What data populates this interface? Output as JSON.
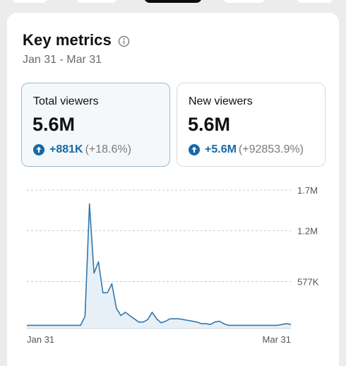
{
  "header": {
    "title": "Key metrics",
    "date_range": "Jan 31 - Mar 31"
  },
  "metrics": [
    {
      "label": "Total viewers",
      "value": "5.6M",
      "delta_abs": "+881K",
      "delta_pct": "(+18.6%)",
      "selected": true
    },
    {
      "label": "New viewers",
      "value": "5.6M",
      "delta_abs": "+5.6M",
      "delta_pct": "(+92853.9%)",
      "selected": false
    }
  ],
  "colors": {
    "accent": "#1769a8",
    "line": "#2f78b1",
    "area": "#e8f0f7"
  },
  "chart_data": {
    "type": "area",
    "xlim": [
      0,
      59
    ],
    "ylim": [
      0,
      1700000
    ],
    "yticks": [
      {
        "value": 1700000,
        "label": "1.7M"
      },
      {
        "value": 1200000,
        "label": "1.2M"
      },
      {
        "value": 577000,
        "label": "577K"
      }
    ],
    "xtick_labels": [
      "Jan 31",
      "Mar 31"
    ],
    "grid": true,
    "values": [
      40000,
      40000,
      40000,
      40000,
      40000,
      40000,
      40000,
      40000,
      40000,
      40000,
      40000,
      40000,
      40000,
      150000,
      1530000,
      680000,
      820000,
      440000,
      440000,
      550000,
      250000,
      160000,
      200000,
      160000,
      120000,
      80000,
      80000,
      110000,
      200000,
      120000,
      70000,
      90000,
      120000,
      120000,
      120000,
      110000,
      100000,
      90000,
      80000,
      60000,
      60000,
      50000,
      80000,
      90000,
      60000,
      40000,
      40000,
      40000,
      40000,
      40000,
      40000,
      40000,
      40000,
      40000,
      40000,
      40000,
      40000,
      50000,
      60000,
      50000
    ]
  }
}
